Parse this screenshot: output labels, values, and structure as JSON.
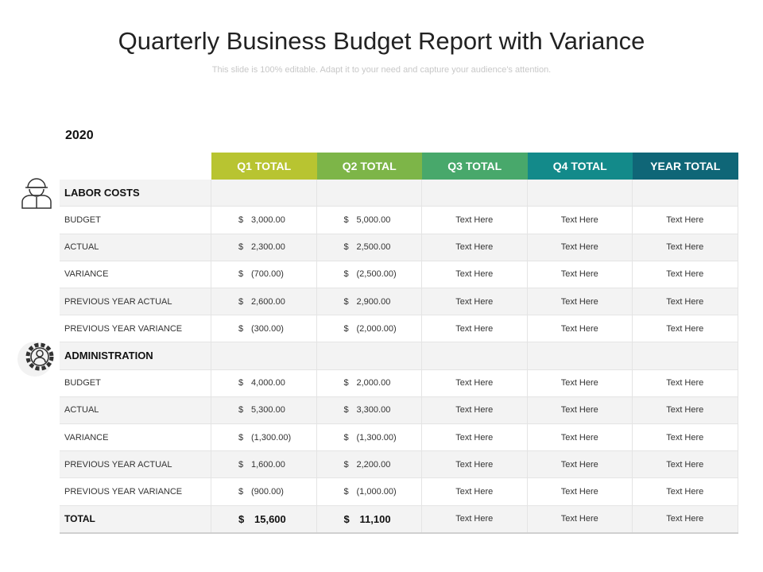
{
  "title": "Quarterly Business Budget Report with Variance",
  "subtitle": "This slide is 100% editable. Adapt it to your need and capture your audience's attention.",
  "table": {
    "year": "2020",
    "headers": [
      "Q1 TOTAL",
      "Q2 TOTAL",
      "Q3 TOTAL",
      "Q4 TOTAL",
      "YEAR TOTAL"
    ],
    "sections": [
      {
        "title": "LABOR COSTS",
        "rows": [
          {
            "label": "BUDGET",
            "cells": [
              [
                "$",
                "3,000.00"
              ],
              [
                "$",
                "5,000.00"
              ],
              "Text Here",
              "Text Here",
              "Text Here"
            ]
          },
          {
            "label": "ACTUAL",
            "cells": [
              [
                "$",
                "2,300.00"
              ],
              [
                "$",
                "2,500.00"
              ],
              "Text Here",
              "Text Here",
              "Text Here"
            ]
          },
          {
            "label": "VARIANCE",
            "cells": [
              [
                "$",
                "(700.00)"
              ],
              [
                "$",
                "(2,500.00)"
              ],
              "Text Here",
              "Text Here",
              "Text Here"
            ]
          },
          {
            "label": "PREVIOUS YEAR ACTUAL",
            "cells": [
              [
                "$",
                "2,600.00"
              ],
              [
                "$",
                "2,900.00"
              ],
              "Text Here",
              "Text Here",
              "Text Here"
            ]
          },
          {
            "label": "PREVIOUS YEAR VARIANCE",
            "cells": [
              [
                "$",
                "(300.00)"
              ],
              [
                "$",
                "(2,000.00)"
              ],
              "Text Here",
              "Text Here",
              "Text Here"
            ]
          }
        ]
      },
      {
        "title": "ADMINISTRATION",
        "rows": [
          {
            "label": "BUDGET",
            "cells": [
              [
                "$",
                "4,000.00"
              ],
              [
                "$",
                "2,000.00"
              ],
              "Text Here",
              "Text Here",
              "Text Here"
            ]
          },
          {
            "label": "ACTUAL",
            "cells": [
              [
                "$",
                "5,300.00"
              ],
              [
                "$",
                "3,300.00"
              ],
              "Text Here",
              "Text Here",
              "Text Here"
            ]
          },
          {
            "label": "VARIANCE",
            "cells": [
              [
                "$",
                "(1,300.00)"
              ],
              [
                "$",
                "(1,300.00)"
              ],
              "Text Here",
              "Text Here",
              "Text Here"
            ]
          },
          {
            "label": "PREVIOUS YEAR ACTUAL",
            "cells": [
              [
                "$",
                "1,600.00"
              ],
              [
                "$",
                "2,200.00"
              ],
              "Text Here",
              "Text Here",
              "Text Here"
            ]
          },
          {
            "label": "PREVIOUS YEAR VARIANCE",
            "cells": [
              [
                "$",
                "(900.00)"
              ],
              [
                "$",
                "(1,000.00)"
              ],
              "Text Here",
              "Text Here",
              "Text Here"
            ]
          }
        ]
      }
    ],
    "total": {
      "label": "TOTAL",
      "cells": [
        [
          "$",
          "15,600"
        ],
        [
          "$",
          "11,100"
        ],
        "Text Here",
        "Text Here",
        "Text Here"
      ]
    }
  }
}
